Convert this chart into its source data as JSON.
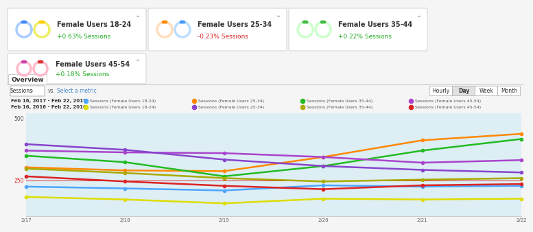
{
  "cards_row1": [
    {
      "label": "Female Users 18-24",
      "change": "+0.63% Sessions",
      "change_color": "#22aa22",
      "ring1_color": "#aaccff",
      "ring2_color": "#eeee66",
      "dot1_color": "#4488ff",
      "dot2_color": "#ffcc00"
    },
    {
      "label": "Female Users 25-34",
      "change": "-0.23% Sessions",
      "change_color": "#dd2222",
      "ring1_color": "#ffddbb",
      "ring2_color": "#bbddff",
      "dot1_color": "#ff8800",
      "dot2_color": "#4499ff"
    },
    {
      "label": "Female Users 35-44",
      "change": "+0.22% Sessions",
      "change_color": "#22aa22",
      "ring1_color": "#ccffcc",
      "ring2_color": "#ccffcc",
      "dot1_color": "#44bb44",
      "dot2_color": "#44bb44"
    }
  ],
  "cards_row2": [
    {
      "label": "Female Users 45-54",
      "change": "+0.18% Sessions",
      "change_color": "#22aa22",
      "ring1_color": "#ffbbcc",
      "ring2_color": "#ffbbcc",
      "dot1_color": "#cc44aa",
      "dot2_color": "#dd3333"
    }
  ],
  "overview_tab": "Overview",
  "sessions_label": "Sessions",
  "vs_label": "vs.",
  "select_metric": "Select a metric",
  "time_buttons": [
    "Hourly",
    "Day",
    "Week",
    "Month"
  ],
  "active_button": "Day",
  "legend_2017_label": "Feb 16, 2017 - Feb 22, 2017:",
  "legend_2016_label": "Feb 16, 2016 - Feb 22, 2016:",
  "legend_2017": [
    {
      "label": "Sessions (Female Users 18-24)",
      "color": "#4da6ff"
    },
    {
      "label": "Sessions (Female Users 25-34)",
      "color": "#ff8800"
    },
    {
      "label": "Sessions (Female Users 35-44)",
      "color": "#22bb22"
    },
    {
      "label": "Sessions (Female Users 45-54)",
      "color": "#aa44cc"
    }
  ],
  "legend_2016": [
    {
      "label": "Sessions (Female Users 18-24)",
      "color": "#dddd00"
    },
    {
      "label": "Sessions (Female Users 25-34)",
      "color": "#8844cc"
    },
    {
      "label": "Sessions (Female Users 35-44)",
      "color": "#aaaa00"
    },
    {
      "label": "Sessions (Female Users 45-54)",
      "color": "#dd2222"
    }
  ],
  "y_label_500": "500",
  "y_label_250": "250",
  "x_ticks": [
    "2/17",
    "2/18",
    "2/19",
    "2/20",
    "2/21",
    "2/22"
  ],
  "chart_bg": "#ddeef5",
  "bg_color": "#f5f5f5",
  "card_bg": "#ffffff",
  "series_2017": {
    "18-24": [
      215,
      208,
      200,
      220,
      215,
      218
    ],
    "25-34": [
      290,
      278,
      275,
      330,
      395,
      420
    ],
    "35-44": [
      335,
      310,
      255,
      295,
      355,
      400
    ],
    "45-54": [
      355,
      348,
      345,
      330,
      308,
      318
    ]
  },
  "series_2016": {
    "18-24": [
      175,
      165,
      150,
      168,
      165,
      168
    ],
    "25-34": [
      380,
      358,
      320,
      295,
      280,
      270
    ],
    "35-44": [
      285,
      268,
      248,
      235,
      242,
      248
    ],
    "45-54": [
      255,
      235,
      218,
      205,
      220,
      225
    ]
  }
}
